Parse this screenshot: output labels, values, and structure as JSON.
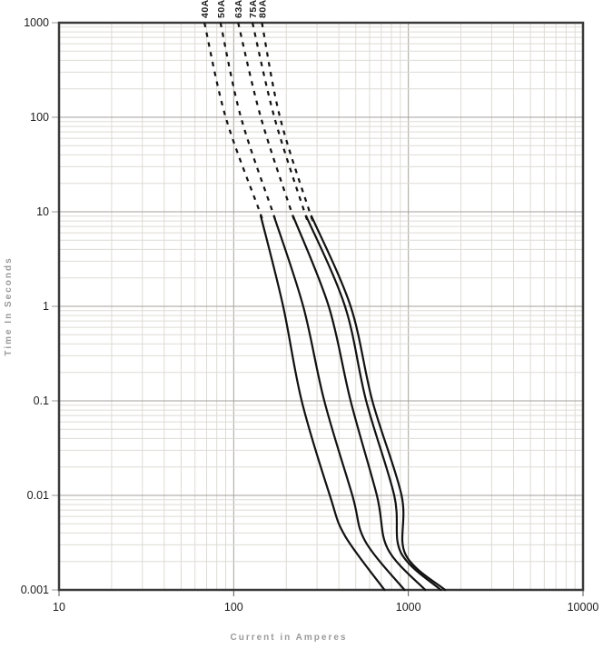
{
  "chart_data": {
    "type": "line",
    "title": "",
    "scale": "log-log",
    "grid": "on (minor log divisions visible, major decade lines darker)",
    "legend_position": "curve labels rotated vertically at top of each curve",
    "x_axis": {
      "label": "Current in Amperes",
      "scale": "log",
      "min": 10,
      "max": 10000,
      "ticks": [
        "10",
        "100",
        "1000",
        "10000"
      ]
    },
    "y_axis": {
      "label": "Time In Seconds",
      "scale": "log",
      "min": 0.001,
      "max": 1000,
      "ticks": [
        "1000",
        "100",
        "10",
        "1",
        "0.1",
        "0.01",
        "0.001"
      ]
    },
    "line_style": {
      "dashed_above_seconds": 9,
      "solid_below_seconds": 9,
      "color": "#111111",
      "width": 2.2
    },
    "series": [
      {
        "name": "40A",
        "points": [
          [
            68,
            1000
          ],
          [
            90,
            100
          ],
          [
            141,
            10
          ],
          [
            192,
            1
          ],
          [
            245,
            0.1
          ],
          [
            355,
            0.01
          ],
          [
            435,
            0.0037
          ],
          [
            730,
            0.001
          ]
        ]
      },
      {
        "name": "50A",
        "points": [
          [
            84,
            1000
          ],
          [
            110,
            100
          ],
          [
            167,
            10
          ],
          [
            250,
            1
          ],
          [
            330,
            0.1
          ],
          [
            478,
            0.01
          ],
          [
            565,
            0.0033
          ],
          [
            950,
            0.001
          ]
        ]
      },
      {
        "name": "63A",
        "points": [
          [
            106,
            1000
          ],
          [
            143,
            100
          ],
          [
            214,
            10
          ],
          [
            350,
            1
          ],
          [
            467,
            0.1
          ],
          [
            660,
            0.01
          ],
          [
            763,
            0.0027
          ],
          [
            1250,
            0.001
          ]
        ]
      },
      {
        "name": "75A",
        "points": [
          [
            128,
            1000
          ],
          [
            171,
            100
          ],
          [
            254,
            10
          ],
          [
            434,
            1
          ],
          [
            573,
            0.1
          ],
          [
            830,
            0.01
          ],
          [
            905,
            0.0025
          ],
          [
            1530,
            0.001
          ]
        ]
      },
      {
        "name": "80A",
        "points": [
          [
            145,
            1000
          ],
          [
            184,
            100
          ],
          [
            272,
            10
          ],
          [
            467,
            1
          ],
          [
            622,
            0.1
          ],
          [
            914,
            0.01
          ],
          [
            960,
            0.0024
          ],
          [
            1620,
            0.001
          ]
        ]
      }
    ],
    "colors": {
      "curve": "#111111",
      "grid_minor": "#dedbd5",
      "grid_major": "#a5a29c",
      "border": "#3a3a3a",
      "tick_text": "#1c1c1c",
      "axis_title_text": "#9a9a9a"
    }
  }
}
